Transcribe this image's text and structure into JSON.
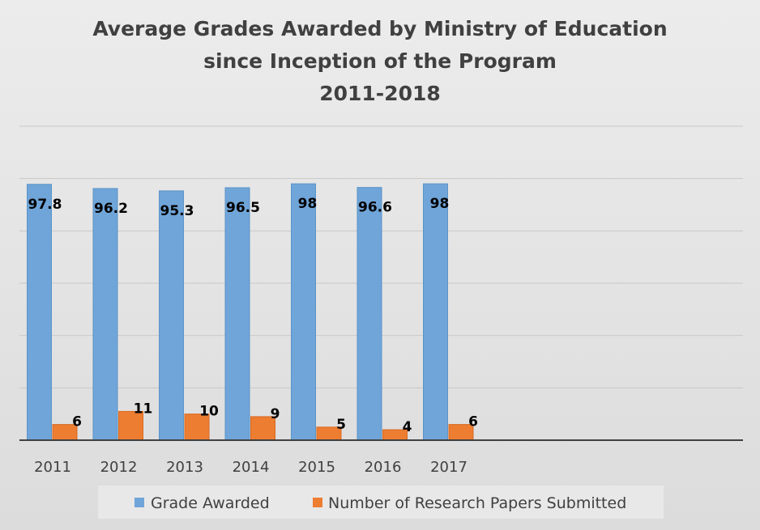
{
  "chart_data": {
    "type": "bar",
    "title_lines": [
      "Average Grades Awarded by Ministry of Education",
      "since Inception of the Program",
      "2011-2018"
    ],
    "categories": [
      "2011",
      "2012",
      "2013",
      "2014",
      "2015",
      "2016",
      "2017"
    ],
    "series": [
      {
        "name": "Grade Awarded",
        "color": "#6fa5d8",
        "values": [
          97.8,
          96.2,
          95.3,
          96.5,
          98,
          96.6,
          98
        ]
      },
      {
        "name": "Number of Research Papers Submitted",
        "color": "#ed7d31",
        "values": [
          6,
          11,
          10,
          9,
          5,
          4,
          6
        ]
      }
    ],
    "ylim": [
      0,
      120
    ],
    "grid": true,
    "legend_position": "bottom",
    "xlabel": "",
    "ylabel": ""
  }
}
